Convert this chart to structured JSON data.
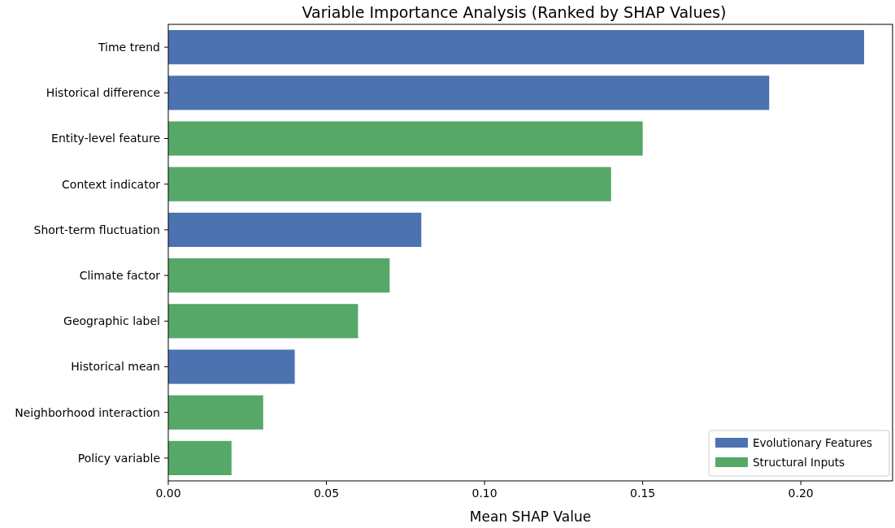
{
  "chart_data": {
    "type": "bar",
    "orientation": "horizontal",
    "title": "Variable Importance Analysis (Ranked by SHAP Values)",
    "xlabel": "Mean SHAP Value",
    "categories": [
      "Time trend",
      "Historical difference",
      "Entity-level feature",
      "Context indicator",
      "Short-term fluctuation",
      "Climate factor",
      "Geographic label",
      "Historical mean",
      "Neighborhood interaction",
      "Policy variable"
    ],
    "series": [
      {
        "name": "Evolutionary Features",
        "color": "#4c72b0",
        "values": [
          0.22,
          0.19,
          null,
          null,
          0.08,
          null,
          null,
          0.04,
          null,
          null
        ]
      },
      {
        "name": "Structural Inputs",
        "color": "#55a868",
        "values": [
          null,
          null,
          0.15,
          0.14,
          null,
          0.07,
          0.06,
          null,
          0.03,
          0.02
        ]
      }
    ],
    "xlim": [
      0,
      0.229
    ],
    "xticks": [
      {
        "value": 0,
        "label": "0.00"
      },
      {
        "value": 0.05,
        "label": "0.05"
      },
      {
        "value": 0.1,
        "label": "0.10"
      },
      {
        "value": 0.15,
        "label": "0.15"
      },
      {
        "value": 0.2,
        "label": "0.20"
      }
    ],
    "grid": false,
    "legend": "bottom right"
  }
}
